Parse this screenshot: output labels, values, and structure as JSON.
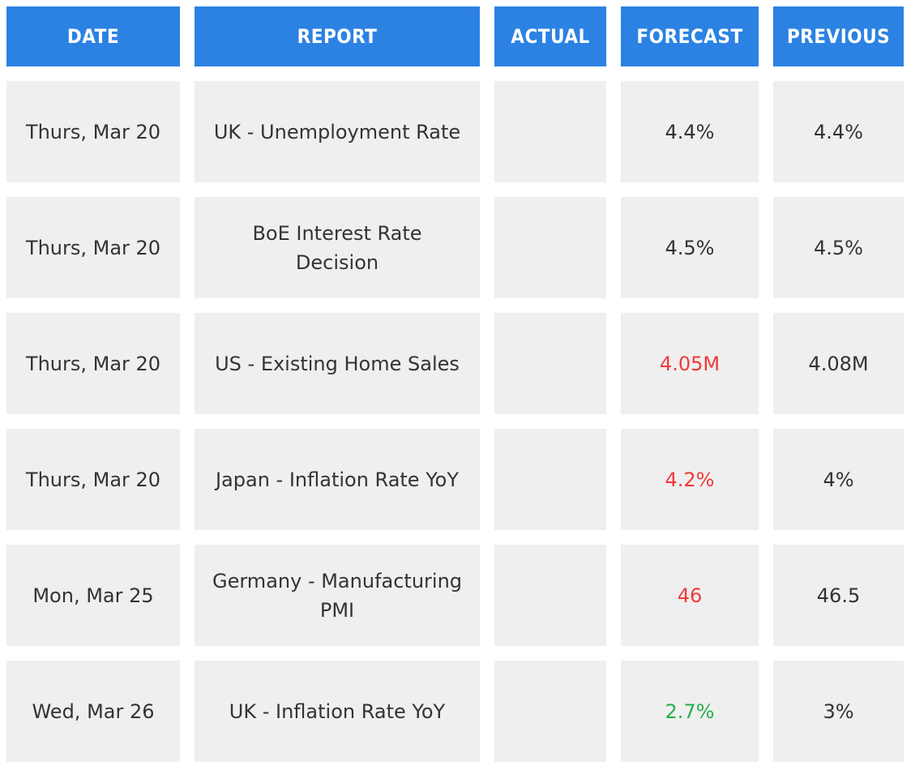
{
  "table": {
    "header": [
      "DATE",
      "REPORT",
      "ACTUAL",
      "FORECAST",
      "PREVIOUS"
    ],
    "rows": [
      {
        "date": "Thurs, Mar 20",
        "report": "UK - Unemployment Rate",
        "forecast": "4.4%",
        "previous": "4.4%"
      },
      {
        "date": "Thurs, Mar 20",
        "report": "BoE Interest Rate Decision",
        "forecast": "4.5%",
        "previous": "4.5%"
      },
      {
        "date": "Thurs, Mar 20",
        "report": "US - Existing Home Sales",
        "forecast": "4.05M",
        "previous": "4.08M"
      },
      {
        "date": "Thurs, Mar 20",
        "report": "Japan - Inflation Rate YoY",
        "forecast": "4.2%",
        "previous": "4%"
      },
      {
        "date": "Mon, Mar 25",
        "report": "Germany - Manufacturing PMI",
        "forecast": "46",
        "previous": "46.5"
      },
      {
        "date": "Wed, Mar 26",
        "report": "UK - Inflation Rate YoY",
        "forecast": "2.7%",
        "previous": "3%"
      }
    ]
  }
}
